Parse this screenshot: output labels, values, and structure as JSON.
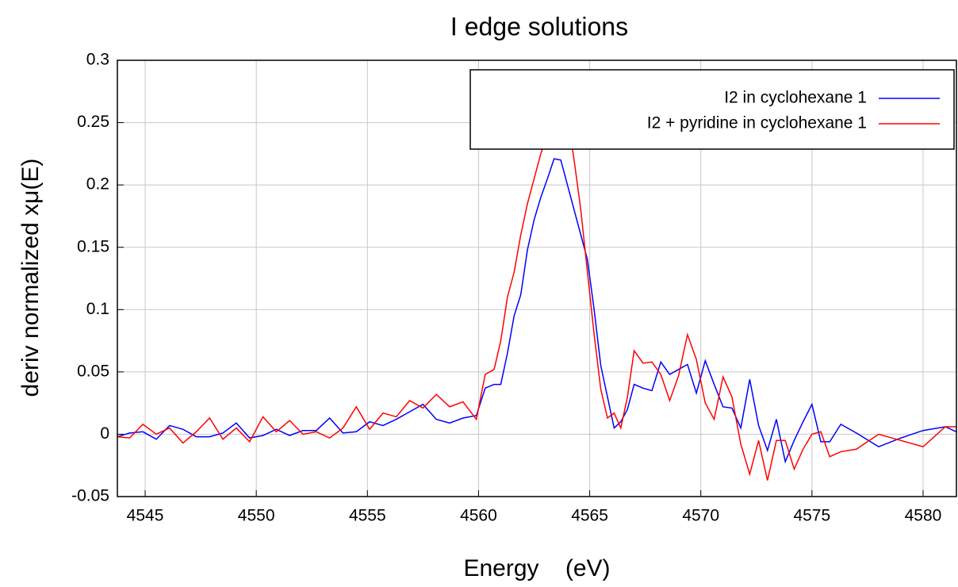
{
  "chart_data": {
    "type": "line",
    "title": "I edge solutions",
    "x_label": "Energy    (eV)",
    "y_label": "deriv normalized xμ(E)",
    "x": [
      4543.75,
      4544.3,
      4544.9,
      4545.5,
      4546.1,
      4546.7,
      4547.3,
      4547.9,
      4548.5,
      4549.1,
      4549.7,
      4550.3,
      4550.9,
      4551.5,
      4552.1,
      4552.7,
      4553.3,
      4553.9,
      4554.5,
      4555.1,
      4555.7,
      4556.3,
      4556.9,
      4557.5,
      4558.1,
      4558.7,
      4559.3,
      4559.9,
      4560.3,
      4560.7,
      4561.0,
      4561.3,
      4561.6,
      4561.9,
      4562.2,
      4562.5,
      4562.8,
      4563.1,
      4563.4,
      4563.7,
      4564.0,
      4564.3,
      4564.6,
      4564.9,
      4565.2,
      4565.5,
      4565.8,
      4566.1,
      4566.4,
      4566.7,
      4567.0,
      4567.4,
      4567.8,
      4568.2,
      4568.6,
      4569.0,
      4569.4,
      4569.8,
      4570.2,
      4570.6,
      4571.0,
      4571.4,
      4571.8,
      4572.2,
      4572.6,
      4573.0,
      4573.4,
      4573.8,
      4574.2,
      4574.6,
      4575.0,
      4575.4,
      4575.8,
      4576.3,
      4577,
      4578,
      4579,
      4580,
      4581,
      4581.5
    ],
    "series": [
      {
        "name": "I2 in cyclohexane 1",
        "color": "#0000ff",
        "values": [
          -0.002,
          0.001,
          0.002,
          -0.004,
          0.007,
          0.004,
          -0.002,
          -0.002,
          0.001,
          0.009,
          -0.003,
          -0.001,
          0.004,
          -0.001,
          0.003,
          0.003,
          0.013,
          0.001,
          0.002,
          0.01,
          0.007,
          0.012,
          0.018,
          0.024,
          0.012,
          0.009,
          0.013,
          0.015,
          0.037,
          0.04,
          0.04,
          0.065,
          0.095,
          0.112,
          0.148,
          0.172,
          0.19,
          0.205,
          0.221,
          0.22,
          0.2,
          0.18,
          0.16,
          0.14,
          0.1,
          0.055,
          0.03,
          0.005,
          0.01,
          0.02,
          0.04,
          0.037,
          0.035,
          0.058,
          0.048,
          0.052,
          0.056,
          0.033,
          0.059,
          0.04,
          0.022,
          0.021,
          0.005,
          0.044,
          0.007,
          -0.013,
          0.012,
          -0.022,
          -0.005,
          0.01,
          0.024,
          -0.006,
          -0.006,
          0.008,
          0.001,
          -0.01,
          -0.003,
          0.003,
          0.006,
          0.002
        ]
      },
      {
        "name": "I2 + pyridine in cyclohexane 1",
        "color": "#ff0000",
        "values": [
          -0.002,
          -0.003,
          0.008,
          0.0,
          0.005,
          -0.007,
          0.002,
          0.013,
          -0.004,
          0.005,
          -0.006,
          0.014,
          0.002,
          0.011,
          0.0,
          0.002,
          -0.003,
          0.005,
          0.022,
          0.004,
          0.017,
          0.014,
          0.027,
          0.021,
          0.032,
          0.022,
          0.026,
          0.012,
          0.048,
          0.052,
          0.075,
          0.11,
          0.13,
          0.16,
          0.185,
          0.205,
          0.225,
          0.24,
          0.276,
          0.265,
          0.255,
          0.22,
          0.18,
          0.13,
          0.08,
          0.036,
          0.013,
          0.017,
          0.005,
          0.03,
          0.067,
          0.057,
          0.058,
          0.048,
          0.027,
          0.047,
          0.08,
          0.06,
          0.025,
          0.012,
          0.046,
          0.03,
          -0.008,
          -0.032,
          -0.005,
          -0.037,
          -0.005,
          -0.005,
          -0.028,
          -0.012,
          0.0,
          0.002,
          -0.018,
          -0.014,
          -0.012,
          0.0,
          -0.005,
          -0.01,
          0.006,
          0.006
        ]
      }
    ],
    "xlim": [
      4543.75,
      4581.5
    ],
    "ylim": [
      -0.05,
      0.3
    ],
    "xticks": [
      4545,
      4550,
      4555,
      4560,
      4565,
      4570,
      4575,
      4580
    ],
    "yticks": [
      -0.05,
      0,
      0.05,
      0.1,
      0.15,
      0.2,
      0.25,
      0.3
    ],
    "grid": true,
    "legend": "upper right"
  }
}
